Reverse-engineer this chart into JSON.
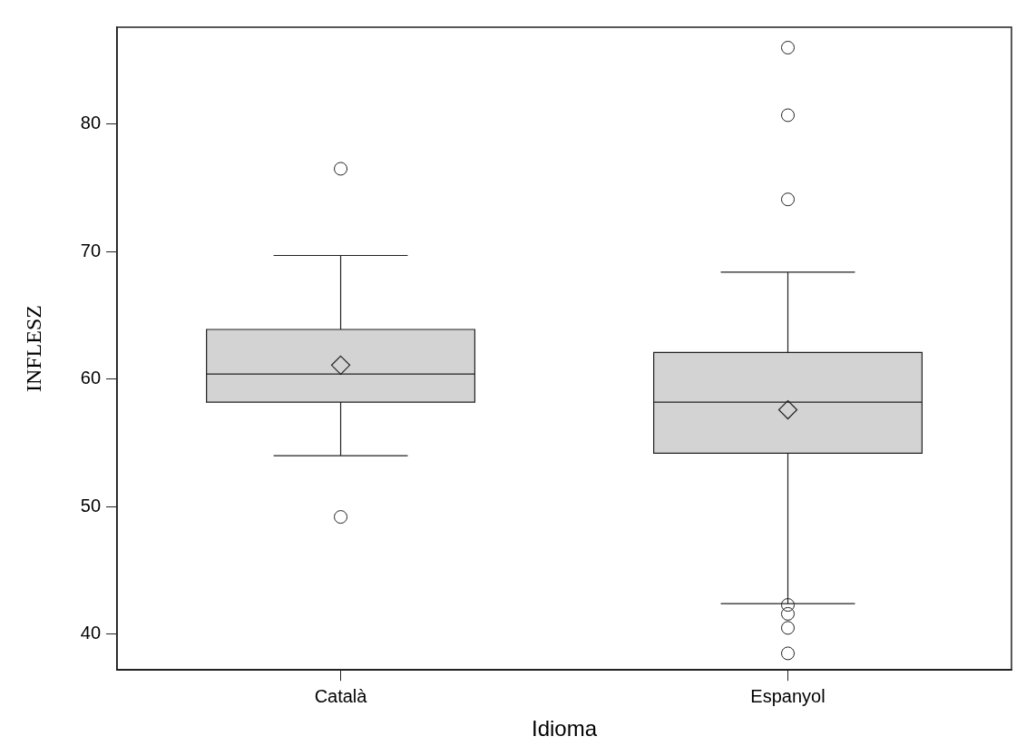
{
  "chart_data": {
    "type": "box",
    "xlabel": "Idioma",
    "ylabel": "INFLESZ",
    "categories": [
      "Català",
      "Espanyol"
    ],
    "color": "#d3d3d3",
    "boxes": [
      {
        "low": 54.0,
        "q1": 58.2,
        "median": 60.4,
        "q3": 63.9,
        "high": 69.7,
        "mean": 61.1,
        "outliers": [
          76.5,
          49.2
        ]
      },
      {
        "low": 42.4,
        "q1": 54.2,
        "median": 58.2,
        "q3": 62.1,
        "high": 68.4,
        "mean": 57.6,
        "outliers": [
          86.0,
          80.7,
          74.1,
          42.3,
          41.6,
          40.5,
          38.5
        ]
      }
    ],
    "ylim": [
      37.2,
      87.6
    ],
    "yticks": [
      40,
      50,
      60,
      70,
      80
    ],
    "grid": false,
    "legend": false
  }
}
